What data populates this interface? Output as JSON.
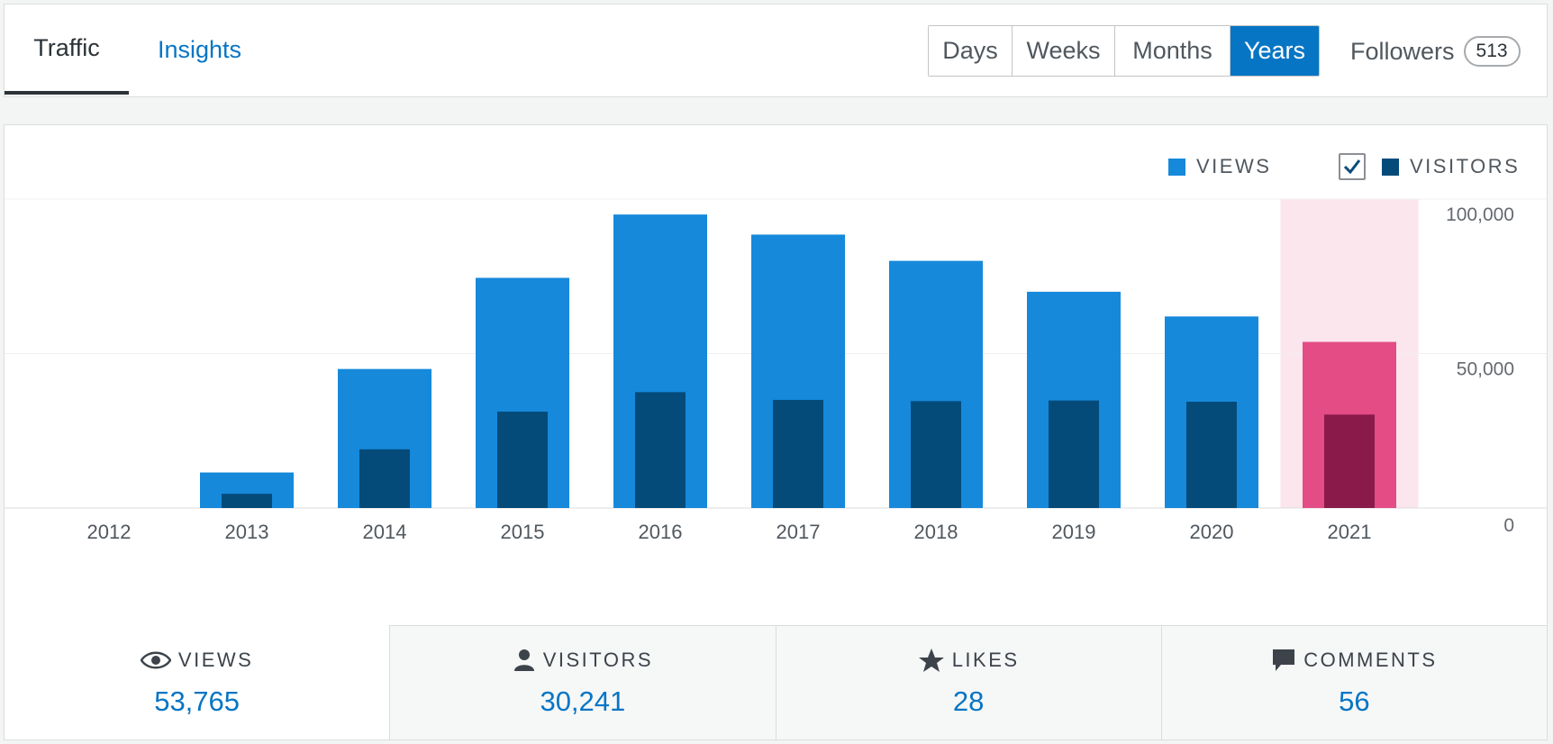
{
  "nav": {
    "tabs": [
      {
        "label": "Traffic",
        "active": true
      },
      {
        "label": "Insights",
        "active": false
      }
    ],
    "periods": [
      {
        "label": "Days",
        "active": false
      },
      {
        "label": "Weeks",
        "active": false
      },
      {
        "label": "Months",
        "active": false
      },
      {
        "label": "Years",
        "active": true
      }
    ],
    "followers": {
      "label": "Followers",
      "count": "513"
    }
  },
  "legend": {
    "views_label": "VIEWS",
    "visitors_label": "VISITORS",
    "visitors_checked": true
  },
  "colors": {
    "accent": "#0675c4",
    "views": "#1689db",
    "visitors": "#044b7a",
    "selected_views": "#e34c84",
    "selected_visitors": "#8a1a4a",
    "selected_bg": "#fbe6ee"
  },
  "chart_data": {
    "type": "bar",
    "categories": [
      "2012",
      "2013",
      "2014",
      "2015",
      "2016",
      "2017",
      "2018",
      "2019",
      "2020",
      "2021"
    ],
    "series": [
      {
        "name": "VIEWS",
        "values": [
          0,
          11500,
          45000,
          74500,
          95000,
          88500,
          80000,
          70000,
          62000,
          53765
        ]
      },
      {
        "name": "VISITORS",
        "values": [
          0,
          4600,
          19000,
          31200,
          37500,
          35000,
          34600,
          34800,
          34400,
          30241
        ]
      }
    ],
    "y_ticks": [
      "100,000",
      "50,000",
      "0"
    ],
    "ylim": [
      0,
      100000
    ],
    "selected_category": "2021",
    "grid": true,
    "legend_position": "top-right"
  },
  "stats": [
    {
      "label": "VIEWS",
      "value": "53,765",
      "icon": "eye-icon"
    },
    {
      "label": "VISITORS",
      "value": "30,241",
      "icon": "person-icon"
    },
    {
      "label": "LIKES",
      "value": "28",
      "icon": "star-icon"
    },
    {
      "label": "COMMENTS",
      "value": "56",
      "icon": "comment-icon"
    }
  ]
}
